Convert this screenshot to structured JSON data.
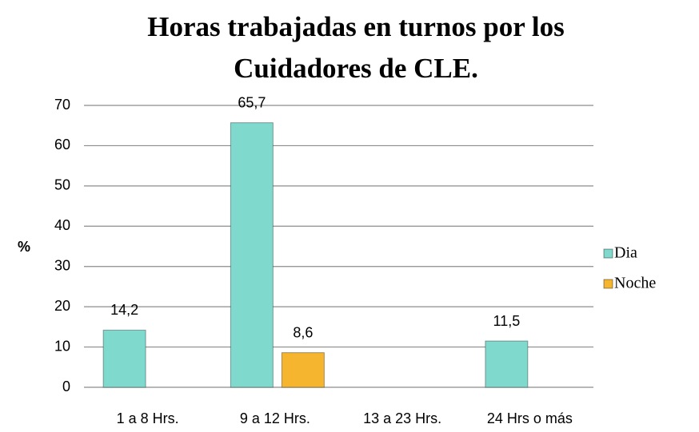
{
  "chart_data": {
    "type": "bar",
    "title": "Horas trabajadas en turnos por los Cuidadores de CLE.",
    "y_label": "%",
    "categories": [
      "1 a 8 Hrs.",
      "9 a 12 Hrs.",
      "13 a 23 Hrs.",
      "24 Hrs o más"
    ],
    "series": [
      {
        "name": "Dia",
        "color": "#7fd9cc",
        "values": [
          14.2,
          65.7,
          null,
          11.5
        ],
        "value_labels": [
          "14,2",
          "65,7",
          null,
          "11,5"
        ]
      },
      {
        "name": "Noche",
        "color": "#f5b52e",
        "values": [
          null,
          8.6,
          null,
          null
        ],
        "value_labels": [
          null,
          "8,6",
          null,
          null
        ]
      }
    ],
    "ylim": [
      0,
      70
    ],
    "yticks": [
      0,
      10,
      20,
      30,
      40,
      50,
      60,
      70
    ],
    "grid": true,
    "legend": "right"
  }
}
